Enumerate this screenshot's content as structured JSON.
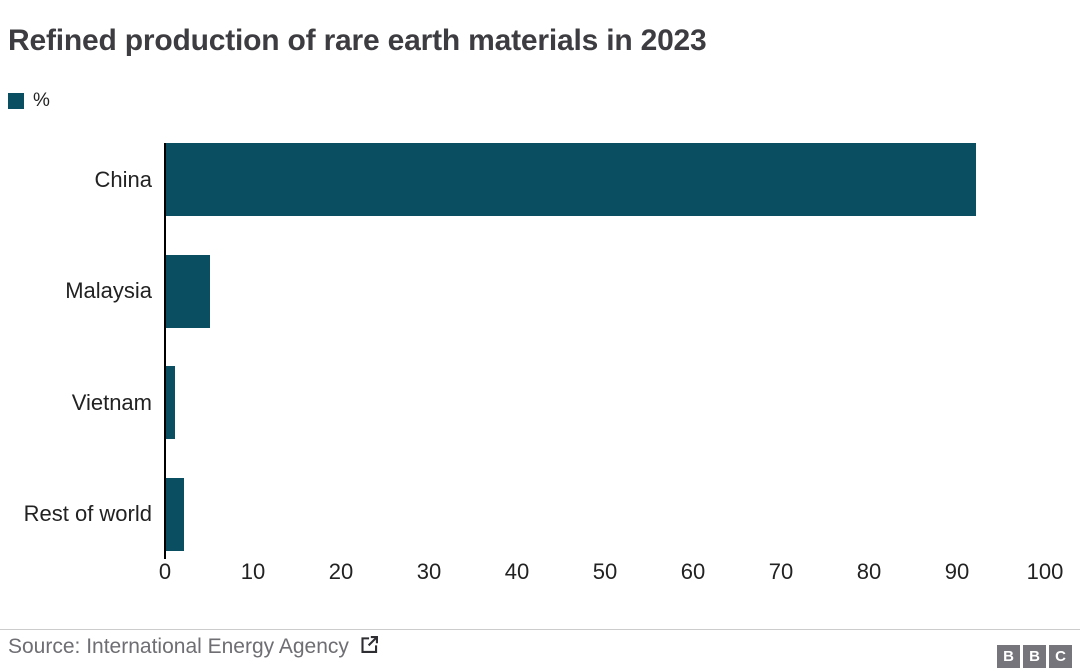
{
  "title": "Refined production of rare earth materials in 2023",
  "legend": {
    "label": "%",
    "swatch_color": "#0a4e61"
  },
  "chart_data": {
    "type": "bar",
    "orientation": "horizontal",
    "title": "Refined production of rare earth materials in 2023",
    "unit": "%",
    "categories": [
      "China",
      "Malaysia",
      "Vietnam",
      "Rest of world"
    ],
    "values": [
      92,
      5,
      1,
      2
    ],
    "xlim": [
      0,
      100
    ],
    "xticks": [
      0,
      10,
      20,
      30,
      40,
      50,
      60,
      70,
      80,
      90,
      100
    ],
    "bar_color": "#0a4e61",
    "axis_color": "#000000",
    "label_color": "#222222",
    "grid": "off",
    "legend_position": "top-left"
  },
  "footer": {
    "source_label": "Source: International Energy Agency",
    "source_icon": "external-link-icon",
    "divider_color": "#cccccc",
    "logo": {
      "letters": [
        "B",
        "B",
        "C"
      ],
      "block_color": "#75757b",
      "letter_color": "#ffffff"
    }
  }
}
